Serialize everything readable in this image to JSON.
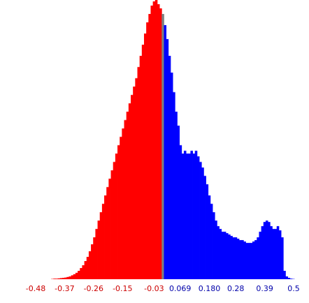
{
  "chart_data": {
    "type": "bar",
    "xlim": [
      -0.48,
      0.5
    ],
    "ylim": [
      0,
      100
    ],
    "legend": "none",
    "grid": false,
    "ticks": [
      {
        "label": "-0.48",
        "x": -0.48,
        "color": "#cc0000"
      },
      {
        "label": "-0.37",
        "x": -0.37,
        "color": "#cc0000"
      },
      {
        "label": "-0.26",
        "x": -0.26,
        "color": "#cc0000"
      },
      {
        "label": "-0.15",
        "x": -0.15,
        "color": "#cc0000"
      },
      {
        "label": "-0.03",
        "x": -0.03,
        "color": "#cc0000"
      },
      {
        "label": "0.069",
        "x": 0.069,
        "color": "#0000aa"
      },
      {
        "label": "0.180",
        "x": 0.18,
        "color": "#0000aa"
      },
      {
        "label": "0.28",
        "x": 0.28,
        "color": "#0000aa"
      },
      {
        "label": "0.39",
        "x": 0.39,
        "color": "#0000aa"
      },
      {
        "label": "0.5",
        "x": 0.5,
        "color": "#0000aa"
      }
    ],
    "colors": {
      "negative": "#ff0000",
      "zero": "#808080",
      "positive": "#0000ff"
    },
    "bin_start": -0.48,
    "bin_width": 0.0084,
    "values": [
      0,
      0,
      0,
      0,
      0,
      0,
      0,
      0.1,
      0.2,
      0.2,
      0.3,
      0.4,
      0.5,
      0.6,
      0.8,
      1.0,
      1.4,
      1.8,
      2.3,
      3,
      4,
      5,
      6.5,
      8,
      10,
      12.5,
      15,
      18,
      21,
      24,
      27,
      30,
      33,
      36,
      39,
      42,
      45,
      48,
      51,
      54,
      57,
      60,
      63,
      66,
      69,
      72,
      76,
      80,
      84,
      88,
      92,
      95,
      98,
      99.5,
      100,
      98.5,
      97,
      95,
      91,
      86,
      80,
      74,
      67,
      60,
      55,
      48,
      45,
      46,
      45,
      45,
      46,
      45,
      46,
      44,
      42,
      40,
      37,
      34,
      30,
      27,
      24,
      21,
      19,
      18,
      17,
      17,
      16.5,
      16,
      15.5,
      15,
      15,
      14.5,
      14,
      14,
      13.5,
      13,
      13,
      13,
      13.5,
      14,
      15,
      17,
      19,
      20.5,
      21,
      20.5,
      19,
      18,
      18,
      19,
      17.5,
      15,
      3,
      1,
      0.5,
      0.2,
      0.1,
      0,
      0,
      0,
      0,
      0,
      0
    ]
  }
}
